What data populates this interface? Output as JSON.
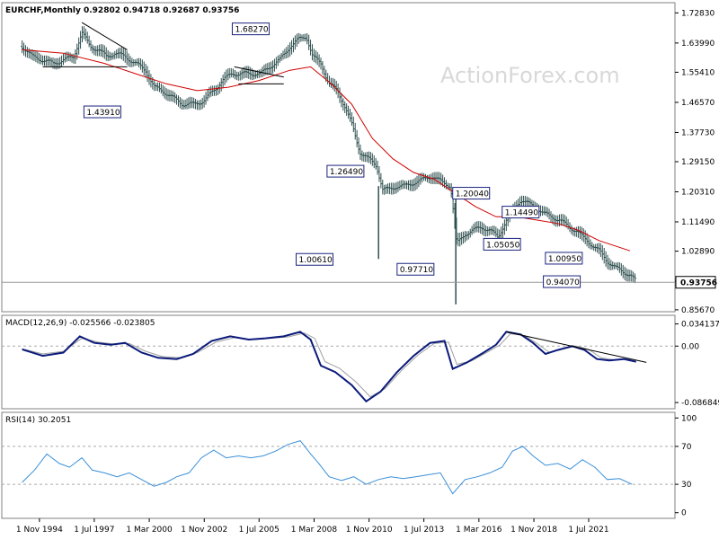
{
  "chart_data": [
    {
      "type": "ohlc",
      "header": "EURCHF,Monthly  0.92802 0.94718 0.92687 0.93756",
      "watermark": "ActionForex.com",
      "ylim": [
        0.8538,
        1.7556
      ],
      "y_ticks": [
        "1.72830",
        "1.63990",
        "1.55410",
        "1.46570",
        "1.37730",
        "1.29150",
        "1.20310",
        "1.11490",
        "1.02890",
        "0.94070",
        "0.85670"
      ],
      "last_price": "0.93756",
      "last_price_value": 0.93756,
      "colors": {
        "bars": "#2f4f4f",
        "ma": "#d00000",
        "annot": "#1a237e",
        "trendline": "#000000",
        "price_line": "#999999"
      },
      "annotations": [
        {
          "label": "1.68270",
          "t": 2004.2,
          "v": 1.6827
        },
        {
          "label": "1.43910",
          "t": 1997.0,
          "v": 1.4391
        },
        {
          "label": "1.26490",
          "t": 2008.8,
          "v": 1.2649
        },
        {
          "label": "1.00610",
          "t": 2007.3,
          "v": 1.0061
        },
        {
          "label": "0.97710",
          "t": 2012.2,
          "v": 0.9771
        },
        {
          "label": "1.20040",
          "t": 2014.9,
          "v": 1.2004
        },
        {
          "label": "1.14490",
          "t": 2017.3,
          "v": 1.1449
        },
        {
          "label": "1.05050",
          "t": 2016.4,
          "v": 1.0505
        },
        {
          "label": "1.00950",
          "t": 2019.4,
          "v": 1.0095
        },
        {
          "label": "0.94070",
          "t": 2019.3,
          "v": 0.9407
        }
      ],
      "close_series": [
        [
          1994.0,
          1.63
        ],
        [
          1994.5,
          1.6
        ],
        [
          1995.0,
          1.59
        ],
        [
          1995.5,
          1.58
        ],
        [
          1996.0,
          1.59
        ],
        [
          1996.5,
          1.6
        ],
        [
          1996.9,
          1.67
        ],
        [
          1997.3,
          1.63
        ],
        [
          1997.7,
          1.62
        ],
        [
          1998.1,
          1.6
        ],
        [
          1998.5,
          1.61
        ],
        [
          1999.0,
          1.6
        ],
        [
          1999.5,
          1.58
        ],
        [
          2000.0,
          1.56
        ],
        [
          2000.4,
          1.51
        ],
        [
          2000.8,
          1.5
        ],
        [
          2001.3,
          1.48
        ],
        [
          2001.8,
          1.46
        ],
        [
          2002.3,
          1.46
        ],
        [
          2002.8,
          1.47
        ],
        [
          2003.3,
          1.5
        ],
        [
          2003.7,
          1.53
        ],
        [
          2004.2,
          1.55
        ],
        [
          2004.6,
          1.55
        ],
        [
          2005.1,
          1.55
        ],
        [
          2005.6,
          1.55
        ],
        [
          2006.0,
          1.57
        ],
        [
          2006.5,
          1.59
        ],
        [
          2007.0,
          1.63
        ],
        [
          2007.4,
          1.65
        ],
        [
          2007.8,
          1.66
        ],
        [
          2008.1,
          1.6
        ],
        [
          2008.5,
          1.58
        ],
        [
          2008.9,
          1.52
        ],
        [
          2009.3,
          1.5
        ],
        [
          2009.7,
          1.45
        ],
        [
          2010.0,
          1.4
        ],
        [
          2010.4,
          1.32
        ],
        [
          2010.8,
          1.3
        ],
        [
          2011.2,
          1.28
        ],
        [
          2011.5,
          1.21
        ],
        [
          2011.8,
          1.21
        ],
        [
          2012.2,
          1.22
        ],
        [
          2012.6,
          1.22
        ],
        [
          2013.0,
          1.23
        ],
        [
          2013.5,
          1.24
        ],
        [
          2013.9,
          1.25
        ],
        [
          2014.4,
          1.23
        ],
        [
          2014.8,
          1.22
        ],
        [
          2015.1,
          1.05
        ],
        [
          2015.5,
          1.08
        ],
        [
          2015.9,
          1.09
        ],
        [
          2016.3,
          1.1
        ],
        [
          2016.7,
          1.09
        ],
        [
          2017.1,
          1.07
        ],
        [
          2017.5,
          1.12
        ],
        [
          2017.8,
          1.15
        ],
        [
          2018.2,
          1.18
        ],
        [
          2018.5,
          1.17
        ],
        [
          2018.9,
          1.16
        ],
        [
          2019.3,
          1.14
        ],
        [
          2019.7,
          1.13
        ],
        [
          2020.1,
          1.12
        ],
        [
          2020.5,
          1.1
        ],
        [
          2020.9,
          1.09
        ],
        [
          2021.2,
          1.07
        ],
        [
          2021.6,
          1.05
        ],
        [
          2022.0,
          1.03
        ],
        [
          2022.4,
          1.0
        ],
        [
          2022.8,
          0.98
        ],
        [
          2023.1,
          0.97
        ],
        [
          2023.5,
          0.96
        ],
        [
          2023.8,
          0.94
        ]
      ],
      "ma_series": [
        [
          1994.0,
          1.62
        ],
        [
          1996.0,
          1.61
        ],
        [
          1998.0,
          1.58
        ],
        [
          1999.5,
          1.55
        ],
        [
          2001.0,
          1.52
        ],
        [
          2002.5,
          1.5
        ],
        [
          2004.0,
          1.51
        ],
        [
          2005.5,
          1.53
        ],
        [
          2007.0,
          1.56
        ],
        [
          2008.0,
          1.57
        ],
        [
          2009.0,
          1.52
        ],
        [
          2010.0,
          1.46
        ],
        [
          2011.0,
          1.36
        ],
        [
          2012.0,
          1.3
        ],
        [
          2013.0,
          1.26
        ],
        [
          2014.0,
          1.24
        ],
        [
          2015.0,
          1.2
        ],
        [
          2016.0,
          1.16
        ],
        [
          2017.0,
          1.13
        ],
        [
          2018.0,
          1.13
        ],
        [
          2019.0,
          1.12
        ],
        [
          2020.0,
          1.11
        ],
        [
          2021.0,
          1.09
        ],
        [
          2022.0,
          1.06
        ],
        [
          2023.5,
          1.03
        ]
      ],
      "trendlines": [
        {
          "from": [
            1996.9,
            1.7
          ],
          "to": [
            1999.1,
            1.62
          ]
        },
        {
          "from": [
            1995.0,
            1.57
          ],
          "to": [
            1999.1,
            1.57
          ]
        },
        {
          "from": [
            2004.3,
            1.57
          ],
          "to": [
            2006.7,
            1.54
          ]
        },
        {
          "from": [
            2004.5,
            1.52
          ],
          "to": [
            2006.7,
            1.52
          ]
        }
      ],
      "x_ticks": [
        "1 Nov 1994",
        "1 Jul 1997",
        "1 Mar 2000",
        "1 Nov 2002",
        "1 Jul 2005",
        "1 Mar 2008",
        "1 Nov 2010",
        "1 Jul 2013",
        "1 Mar 2016",
        "1 Nov 2018",
        "1 Jul 2021"
      ]
    },
    {
      "type": "line",
      "header": "MACD(12,26,9) -0.025566 -0.023805",
      "ylim": [
        -0.095,
        0.046
      ],
      "y_ticks": [
        "0.034137",
        "0.00",
        "-0.086849"
      ],
      "y_tick_values": [
        0.034137,
        0.0,
        -0.086849
      ],
      "macd_series": [
        [
          1994.0,
          -0.005
        ],
        [
          1995.0,
          -0.015
        ],
        [
          1996.0,
          -0.01
        ],
        [
          1996.8,
          0.015
        ],
        [
          1997.5,
          0.005
        ],
        [
          1998.3,
          0.002
        ],
        [
          1999.0,
          0.005
        ],
        [
          1999.8,
          -0.01
        ],
        [
          2000.6,
          -0.018
        ],
        [
          2001.5,
          -0.02
        ],
        [
          2002.3,
          -0.012
        ],
        [
          2003.2,
          0.008
        ],
        [
          2004.1,
          0.015
        ],
        [
          2005.0,
          0.01
        ],
        [
          2005.8,
          0.012
        ],
        [
          2006.7,
          0.015
        ],
        [
          2007.5,
          0.022
        ],
        [
          2008.0,
          0.01
        ],
        [
          2008.5,
          -0.03
        ],
        [
          2009.2,
          -0.04
        ],
        [
          2010.0,
          -0.06
        ],
        [
          2010.7,
          -0.085
        ],
        [
          2011.4,
          -0.07
        ],
        [
          2012.2,
          -0.04
        ],
        [
          2013.0,
          -0.015
        ],
        [
          2013.8,
          0.005
        ],
        [
          2014.5,
          0.008
        ],
        [
          2014.9,
          -0.035
        ],
        [
          2015.6,
          -0.025
        ],
        [
          2016.4,
          -0.01
        ],
        [
          2017.0,
          0.002
        ],
        [
          2017.5,
          0.022
        ],
        [
          2018.2,
          0.018
        ],
        [
          2018.8,
          0.005
        ],
        [
          2019.4,
          -0.012
        ],
        [
          2020.0,
          -0.006
        ],
        [
          2020.7,
          0.0
        ],
        [
          2021.3,
          -0.006
        ],
        [
          2021.9,
          -0.02
        ],
        [
          2022.5,
          -0.022
        ],
        [
          2023.2,
          -0.02
        ],
        [
          2023.8,
          -0.024
        ]
      ],
      "signal_series": [
        [
          1994.0,
          -0.004
        ],
        [
          1995.0,
          -0.012
        ],
        [
          1996.0,
          -0.008
        ],
        [
          1996.9,
          0.012
        ],
        [
          1997.7,
          0.006
        ],
        [
          1998.5,
          0.003
        ],
        [
          1999.2,
          0.004
        ],
        [
          2000.0,
          -0.008
        ],
        [
          2000.8,
          -0.016
        ],
        [
          2001.7,
          -0.018
        ],
        [
          2002.5,
          -0.01
        ],
        [
          2003.4,
          0.006
        ],
        [
          2004.3,
          0.013
        ],
        [
          2005.2,
          0.01
        ],
        [
          2006.0,
          0.012
        ],
        [
          2006.9,
          0.014
        ],
        [
          2007.7,
          0.02
        ],
        [
          2008.2,
          0.012
        ],
        [
          2008.7,
          -0.024
        ],
        [
          2009.4,
          -0.034
        ],
        [
          2010.2,
          -0.055
        ],
        [
          2010.9,
          -0.078
        ],
        [
          2011.6,
          -0.066
        ],
        [
          2012.4,
          -0.038
        ],
        [
          2013.2,
          -0.014
        ],
        [
          2014.0,
          0.004
        ],
        [
          2014.7,
          0.006
        ],
        [
          2015.1,
          -0.028
        ],
        [
          2015.8,
          -0.023
        ],
        [
          2016.6,
          -0.009
        ],
        [
          2017.2,
          0.002
        ],
        [
          2017.7,
          0.019
        ],
        [
          2018.4,
          0.016
        ],
        [
          2019.0,
          0.004
        ],
        [
          2019.6,
          -0.01
        ],
        [
          2020.2,
          -0.005
        ],
        [
          2020.9,
          0.0
        ],
        [
          2021.5,
          -0.005
        ],
        [
          2022.1,
          -0.018
        ],
        [
          2022.7,
          -0.021
        ],
        [
          2023.4,
          -0.02
        ],
        [
          2023.8,
          -0.024
        ]
      ],
      "trendline": {
        "from": [
          2017.5,
          0.022
        ],
        "to": [
          2024.3,
          -0.025
        ]
      }
    },
    {
      "type": "line",
      "header": "RSI(14) 30.2051",
      "ylim": [
        -5,
        105
      ],
      "y_ticks": [
        "100",
        "70",
        "30",
        "0"
      ],
      "y_tick_values": [
        100,
        70,
        30,
        0
      ],
      "rsi_series": [
        [
          1994.0,
          32
        ],
        [
          1994.6,
          45
        ],
        [
          1995.2,
          62
        ],
        [
          1995.8,
          52
        ],
        [
          1996.3,
          48
        ],
        [
          1996.9,
          58
        ],
        [
          1997.4,
          45
        ],
        [
          1998.0,
          42
        ],
        [
          1998.6,
          38
        ],
        [
          1999.2,
          42
        ],
        [
          1999.8,
          35
        ],
        [
          2000.4,
          28
        ],
        [
          2001.0,
          32
        ],
        [
          2001.5,
          38
        ],
        [
          2002.1,
          42
        ],
        [
          2002.7,
          58
        ],
        [
          2003.3,
          66
        ],
        [
          2003.9,
          58
        ],
        [
          2004.5,
          60
        ],
        [
          2005.1,
          58
        ],
        [
          2005.7,
          60
        ],
        [
          2006.3,
          65
        ],
        [
          2006.9,
          72
        ],
        [
          2007.5,
          76
        ],
        [
          2008.0,
          62
        ],
        [
          2008.4,
          52
        ],
        [
          2008.9,
          38
        ],
        [
          2009.5,
          34
        ],
        [
          2010.1,
          38
        ],
        [
          2010.7,
          30
        ],
        [
          2011.3,
          35
        ],
        [
          2011.9,
          38
        ],
        [
          2012.5,
          36
        ],
        [
          2013.1,
          38
        ],
        [
          2013.7,
          40
        ],
        [
          2014.3,
          42
        ],
        [
          2014.9,
          20
        ],
        [
          2015.5,
          35
        ],
        [
          2016.1,
          38
        ],
        [
          2016.7,
          42
        ],
        [
          2017.3,
          48
        ],
        [
          2017.8,
          65
        ],
        [
          2018.3,
          70
        ],
        [
          2018.8,
          60
        ],
        [
          2019.4,
          50
        ],
        [
          2020.0,
          52
        ],
        [
          2020.6,
          46
        ],
        [
          2021.2,
          56
        ],
        [
          2021.8,
          48
        ],
        [
          2022.4,
          35
        ],
        [
          2023.0,
          36
        ],
        [
          2023.6,
          30
        ]
      ]
    }
  ]
}
